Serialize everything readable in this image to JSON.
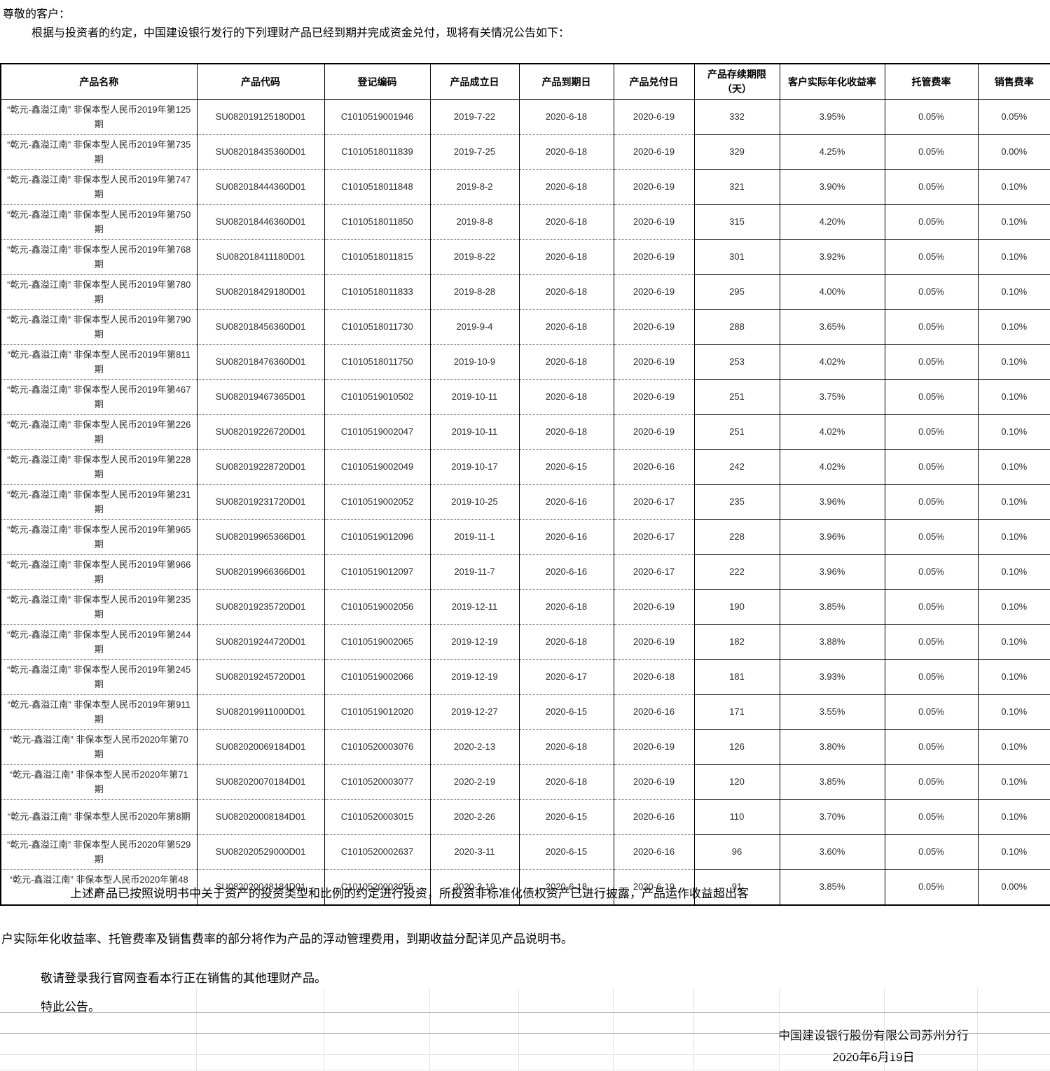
{
  "document": {
    "salutation": "尊敬的客户：",
    "intro": "根据与投资者的约定，中国建设银行发行的下列理财产品已经到期并完成资金兑付，现将有关情况公告如下：",
    "footer_paragraph_1": "上述产品已按照说明书中关于资产的投资类型和比例的约定进行投资，所投资非标准化债权资产已进行披露，产品运作收益超出客",
    "footer_paragraph_2": "户实际年化收益率、托管费率及销售费率的部分将作为产品的浮动管理费用，到期收益分配详见产品说明书。",
    "footer_note": "敬请登录我行官网查看本行正在销售的其他理财产品。",
    "footer_closing": "特此公告。",
    "signature": "中国建设银行股份有限公司苏州分行",
    "date": "2020年6月19日"
  },
  "table": {
    "columns": [
      "产品名称",
      "产品代码",
      "登记编码",
      "产品成立日",
      "产品到期日",
      "产品兑付日",
      "产品存续期限（天）",
      "客户实际年化收益率",
      "托管费率",
      "销售费率"
    ],
    "rows": [
      [
        "“乾元-鑫溢江南” 非保本型人民币2019年第125期",
        "SU082019125180D01",
        "C1010519001946",
        "2019-7-22",
        "2020-6-18",
        "2020-6-19",
        "332",
        "3.95%",
        "0.05%",
        "0.05%"
      ],
      [
        "“乾元-鑫溢江南” 非保本型人民币2019年第735期",
        "SU082018435360D01",
        "C1010518011839",
        "2019-7-25",
        "2020-6-18",
        "2020-6-19",
        "329",
        "4.25%",
        "0.05%",
        "0.00%"
      ],
      [
        "“乾元-鑫溢江南” 非保本型人民币2019年第747期",
        "SU082018444360D01",
        "C1010518011848",
        "2019-8-2",
        "2020-6-18",
        "2020-6-19",
        "321",
        "3.90%",
        "0.05%",
        "0.10%"
      ],
      [
        "“乾元-鑫溢江南” 非保本型人民币2019年第750期",
        "SU082018446360D01",
        "C1010518011850",
        "2019-8-8",
        "2020-6-18",
        "2020-6-19",
        "315",
        "4.20%",
        "0.05%",
        "0.10%"
      ],
      [
        "“乾元-鑫溢江南” 非保本型人民币2019年第768期",
        "SU082018411180D01",
        "C1010518011815",
        "2019-8-22",
        "2020-6-18",
        "2020-6-19",
        "301",
        "3.92%",
        "0.05%",
        "0.10%"
      ],
      [
        "“乾元-鑫溢江南” 非保本型人民币2019年第780期",
        "SU082018429180D01",
        "C1010518011833",
        "2019-8-28",
        "2020-6-18",
        "2020-6-19",
        "295",
        "4.00%",
        "0.05%",
        "0.10%"
      ],
      [
        "“乾元-鑫溢江南” 非保本型人民币2019年第790期",
        "SU082018456360D01",
        "C1010518011730",
        "2019-9-4",
        "2020-6-18",
        "2020-6-19",
        "288",
        "3.65%",
        "0.05%",
        "0.10%"
      ],
      [
        "“乾元-鑫溢江南” 非保本型人民币2019年第811期",
        "SU082018476360D01",
        "C1010518011750",
        "2019-10-9",
        "2020-6-18",
        "2020-6-19",
        "253",
        "4.02%",
        "0.05%",
        "0.10%"
      ],
      [
        "“乾元-鑫溢江南” 非保本型人民币2019年第467期",
        "SU082019467365D01",
        "C1010519010502",
        "2019-10-11",
        "2020-6-18",
        "2020-6-19",
        "251",
        "3.75%",
        "0.05%",
        "0.10%"
      ],
      [
        "“乾元-鑫溢江南” 非保本型人民币2019年第226期",
        "SU082019226720D01",
        "C1010519002047",
        "2019-10-11",
        "2020-6-18",
        "2020-6-19",
        "251",
        "4.02%",
        "0.05%",
        "0.10%"
      ],
      [
        "“乾元-鑫溢江南” 非保本型人民币2019年第228期",
        "SU082019228720D01",
        "C1010519002049",
        "2019-10-17",
        "2020-6-15",
        "2020-6-16",
        "242",
        "4.02%",
        "0.05%",
        "0.10%"
      ],
      [
        "“乾元-鑫溢江南” 非保本型人民币2019年第231期",
        "SU082019231720D01",
        "C1010519002052",
        "2019-10-25",
        "2020-6-16",
        "2020-6-17",
        "235",
        "3.96%",
        "0.05%",
        "0.10%"
      ],
      [
        "“乾元-鑫溢江南” 非保本型人民币2019年第965期",
        "SU082019965366D01",
        "C1010519012096",
        "2019-11-1",
        "2020-6-16",
        "2020-6-17",
        "228",
        "3.96%",
        "0.05%",
        "0.10%"
      ],
      [
        "“乾元-鑫溢江南” 非保本型人民币2019年第966期",
        "SU082019966366D01",
        "C1010519012097",
        "2019-11-7",
        "2020-6-16",
        "2020-6-17",
        "222",
        "3.96%",
        "0.05%",
        "0.10%"
      ],
      [
        "“乾元-鑫溢江南” 非保本型人民币2019年第235期",
        "SU082019235720D01",
        "C1010519002056",
        "2019-12-11",
        "2020-6-18",
        "2020-6-19",
        "190",
        "3.85%",
        "0.05%",
        "0.10%"
      ],
      [
        "“乾元-鑫溢江南” 非保本型人民币2019年第244期",
        "SU082019244720D01",
        "C1010519002065",
        "2019-12-19",
        "2020-6-18",
        "2020-6-19",
        "182",
        "3.88%",
        "0.05%",
        "0.10%"
      ],
      [
        "“乾元-鑫溢江南” 非保本型人民币2019年第245期",
        "SU082019245720D01",
        "C1010519002066",
        "2019-12-19",
        "2020-6-17",
        "2020-6-18",
        "181",
        "3.93%",
        "0.05%",
        "0.10%"
      ],
      [
        "“乾元-鑫溢江南” 非保本型人民币2019年第911期",
        "SU082019911000D01",
        "C1010519012020",
        "2019-12-27",
        "2020-6-15",
        "2020-6-16",
        "171",
        "3.55%",
        "0.05%",
        "0.10%"
      ],
      [
        "“乾元-鑫溢江南” 非保本型人民币2020年第70期",
        "SU082020069184D01",
        "C1010520003076",
        "2020-2-13",
        "2020-6-18",
        "2020-6-19",
        "126",
        "3.80%",
        "0.05%",
        "0.10%"
      ],
      [
        "“乾元-鑫溢江南” 非保本型人民币2020年第71期",
        "SU082020070184D01",
        "C1010520003077",
        "2020-2-19",
        "2020-6-18",
        "2020-6-19",
        "120",
        "3.85%",
        "0.05%",
        "0.10%"
      ],
      [
        "“乾元-鑫溢江南” 非保本型人民币2020年第8期",
        "SU082020008184D01",
        "C1010520003015",
        "2020-2-26",
        "2020-6-15",
        "2020-6-16",
        "110",
        "3.70%",
        "0.05%",
        "0.10%"
      ],
      [
        "“乾元-鑫溢江南” 非保本型人民币2020年第529期",
        "SU082020529000D01",
        "C1010520002637",
        "2020-3-11",
        "2020-6-15",
        "2020-6-16",
        "96",
        "3.60%",
        "0.05%",
        "0.10%"
      ],
      [
        "“乾元-鑫溢江南” 非保本型人民币2020年第48期",
        "SU082020048184D01",
        "C1010520003055",
        "2020-3-19",
        "2020-6-18",
        "2020-6-19",
        "91",
        "3.85%",
        "0.05%",
        "0.00%"
      ]
    ]
  }
}
